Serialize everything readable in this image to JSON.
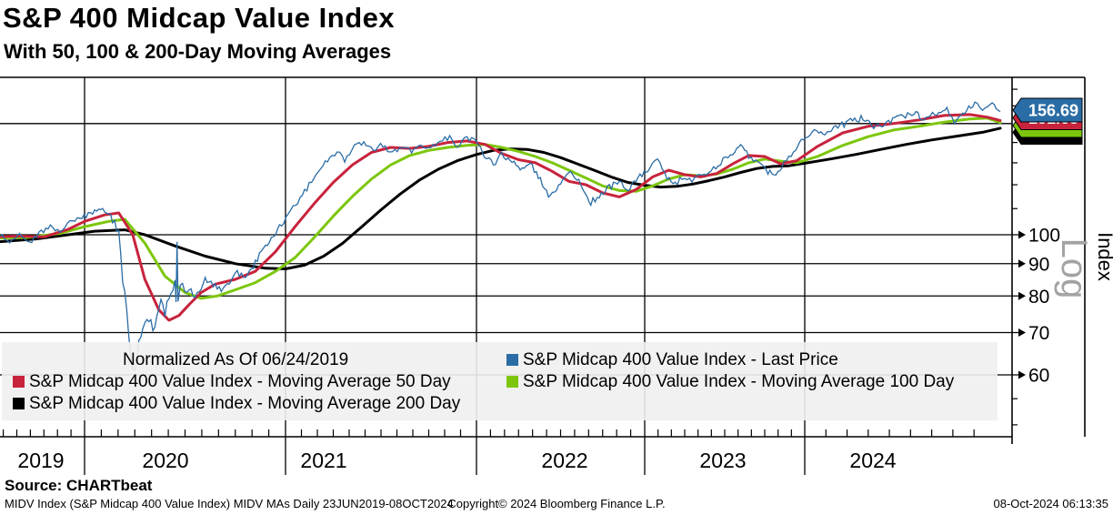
{
  "header": {
    "title": "S&P 400 Midcap Value Index",
    "subtitle": "With 50, 100 & 200-Day Moving Averages"
  },
  "colors": {
    "blue": "#2A6CA5",
    "red": "#C8233C",
    "green": "#7DC60D",
    "black": "#000000",
    "grid": "#000000",
    "legend_bg": "#EFEFEF",
    "log_gray": "#A3A3A3",
    "tag_text": "#FFFFFF"
  },
  "legend": {
    "normalized_note": "Normalized As Of 06/24/2019",
    "entries": [
      {
        "label": "S&P Midcap 400 Value Index - Last Price",
        "color": "blue"
      },
      {
        "label": "S&P Midcap 400 Value Index - Moving Average 50 Day",
        "color": "red"
      },
      {
        "label": "S&P Midcap 400 Value Index - Moving Average 100 Day",
        "color": "green"
      },
      {
        "label": "S&P Midcap 400 Value Index - Moving Average 200 Day",
        "color": "black"
      }
    ]
  },
  "axis": {
    "scale_label": "Log",
    "title": "Index",
    "y_tick_labels": [
      {
        "label": "100",
        "value": 100
      },
      {
        "label": "90",
        "value": 90
      },
      {
        "label": "80",
        "value": 80
      },
      {
        "label": "70",
        "value": 70
      },
      {
        "label": "60",
        "value": 60
      }
    ],
    "x_labels": [
      "2019",
      "2020",
      "2021",
      "2022",
      "2023",
      "2024"
    ]
  },
  "price_tags": [
    {
      "series": "last_price",
      "value": "156.69",
      "color": "blue"
    },
    {
      "series": "ma50",
      "value": "151.68",
      "color": "red"
    },
    {
      "series": "ma100",
      "value": "",
      "color": "green"
    },
    {
      "series": "ma200",
      "value": "",
      "color": "black"
    }
  ],
  "footer": {
    "source": "Source: CHARTbeat",
    "left": "MIDV Index (S&P Midcap 400 Value Index) MIDV MAs  Daily 23JUN2019-08OCT2024",
    "center": "Copyright© 2024 Bloomberg Finance L.P.",
    "right": "08-Oct-2024 06:13:35"
  },
  "chart_data": {
    "type": "line",
    "title": "S&P 400 Midcap Value Index",
    "subtitle": "With 50, 100 & 200-Day Moving Averages",
    "normalized": "Normalized As Of 06/24/2019 = 100",
    "x_range": {
      "start": "23JUN2019",
      "end": "08OCT2024",
      "frequency": "Daily",
      "x_unit": "decimal year"
    },
    "y_scale": "log",
    "ylim": [
      48,
      178
    ],
    "y_gridlines": [
      150,
      100,
      90,
      80,
      70,
      60
    ],
    "x_gridline_years": [
      2020,
      2021,
      2022,
      2023,
      2024
    ],
    "legend_position": "bottom inside",
    "series": [
      {
        "name": "S&P Midcap 400 Value Index - Last Price",
        "color": "blue",
        "style": "noisy_daily",
        "last_value": 156.69,
        "x": [
          2019.48,
          2019.54,
          2019.6,
          2019.66,
          2019.72,
          2019.79,
          2019.85,
          2019.91,
          2019.97,
          2020.04,
          2020.09,
          2020.13,
          2020.17,
          2020.2,
          2020.23,
          2020.25,
          2020.28,
          2020.31,
          2020.34,
          2020.37,
          2020.4,
          2020.43,
          2020.45,
          2020.455,
          2020.46,
          2020.465,
          2020.51,
          2020.55,
          2020.6,
          2020.64,
          2020.68,
          2020.72,
          2020.76,
          2020.8,
          2020.84,
          2020.88,
          2020.93,
          2020.98,
          2021.04,
          2021.1,
          2021.16,
          2021.22,
          2021.27,
          2021.31,
          2021.36,
          2021.41,
          2021.46,
          2021.51,
          2021.56,
          2021.61,
          2021.66,
          2021.71,
          2021.76,
          2021.81,
          2021.86,
          2021.9,
          2021.95,
          2022.0,
          2022.05,
          2022.1,
          2022.15,
          2022.2,
          2022.26,
          2022.32,
          2022.38,
          2022.44,
          2022.5,
          2022.56,
          2022.62,
          2022.68,
          2022.73,
          2022.79,
          2022.85,
          2022.9,
          2022.96,
          2023.02,
          2023.08,
          2023.14,
          2023.19,
          2023.25,
          2023.31,
          2023.37,
          2023.43,
          2023.49,
          2023.55,
          2023.6,
          2023.65,
          2023.71,
          2023.77,
          2023.82,
          2023.87,
          2023.93,
          2023.98,
          2024.03,
          2024.08,
          2024.13,
          2024.18,
          2024.23,
          2024.28,
          2024.33,
          2024.38,
          2024.43,
          2024.47,
          2024.52,
          2024.56,
          2024.59,
          2024.63,
          2024.67,
          2024.7,
          2024.73,
          2024.77
        ],
        "v": [
          100,
          97.5,
          101,
          97,
          100.5,
          103,
          101,
          104.5,
          106,
          108.5,
          110,
          107,
          99,
          80,
          64,
          61,
          70,
          75,
          70.5,
          78,
          75,
          82.5,
          84,
          80,
          99.5,
          80.5,
          83,
          79.5,
          85,
          83.5,
          81.5,
          84,
          87,
          85.5,
          89,
          94,
          99,
          104,
          110,
          117,
          124,
          131,
          135,
          131,
          137.5,
          140,
          136,
          139,
          134,
          138,
          136,
          139.5,
          137,
          141,
          143,
          138.5,
          142,
          140.5,
          133.5,
          129,
          134,
          131,
          127,
          130,
          122,
          114.5,
          120,
          126,
          120,
          112.5,
          115.5,
          119,
          121.5,
          117.5,
          123,
          127,
          131.5,
          122.5,
          120.5,
          124,
          122,
          124.5,
          127,
          131.5,
          135,
          137.5,
          133.5,
          130,
          126,
          124.5,
          130,
          136,
          142,
          146,
          144.5,
          148,
          151.5,
          153,
          148,
          151,
          154,
          156,
          152.5,
          155.5,
          158.5,
          151,
          157,
          160.5,
          158,
          162,
          156.69
        ]
      },
      {
        "name": "S&P Midcap 400 Value Index - Moving Average 50 Day",
        "color": "red",
        "style": "smooth",
        "last_value": 151.68,
        "x": [
          2019.48,
          2019.6,
          2019.75,
          2019.9,
          2020.0,
          2020.1,
          2020.17,
          2020.24,
          2020.3,
          2020.37,
          2020.42,
          2020.47,
          2020.52,
          2020.58,
          2020.65,
          2020.75,
          2020.85,
          2020.95,
          2021.05,
          2021.15,
          2021.25,
          2021.35,
          2021.45,
          2021.55,
          2021.65,
          2021.75,
          2021.85,
          2021.95,
          2022.05,
          2022.15,
          2022.25,
          2022.35,
          2022.45,
          2022.55,
          2022.65,
          2022.75,
          2022.85,
          2022.95,
          2023.05,
          2023.15,
          2023.25,
          2023.35,
          2023.45,
          2023.55,
          2023.65,
          2023.75,
          2023.85,
          2023.95,
          2024.05,
          2024.15,
          2024.25,
          2024.35,
          2024.45,
          2024.55,
          2024.65,
          2024.72,
          2024.77
        ],
        "v": [
          99.3,
          99.5,
          99.2,
          102,
          105,
          107.5,
          108.3,
          100,
          85,
          76,
          73.2,
          74.5,
          77.5,
          81,
          83.5,
          85,
          87.5,
          94,
          103,
          112,
          121,
          129,
          135,
          137.5,
          137,
          138,
          140,
          140.8,
          139,
          134.5,
          131.5,
          130,
          126,
          121.5,
          120,
          116.5,
          114.8,
          118,
          123.5,
          126.5,
          124.5,
          123.5,
          125,
          129.5,
          133.5,
          133,
          129.5,
          131,
          138,
          145,
          148.5,
          150,
          152,
          154.5,
          155,
          153.5,
          151.68
        ]
      },
      {
        "name": "S&P Midcap 400 Value Index - Moving Average 100 Day",
        "color": "green",
        "style": "smooth",
        "last_value": 150.5,
        "x": [
          2019.48,
          2019.65,
          2019.85,
          2020.0,
          2020.12,
          2020.2,
          2020.3,
          2020.4,
          2020.5,
          2020.58,
          2020.66,
          2020.75,
          2020.85,
          2020.95,
          2021.05,
          2021.15,
          2021.25,
          2021.35,
          2021.45,
          2021.55,
          2021.65,
          2021.75,
          2021.85,
          2021.95,
          2022.05,
          2022.15,
          2022.25,
          2022.35,
          2022.45,
          2022.55,
          2022.65,
          2022.75,
          2022.85,
          2022.95,
          2023.05,
          2023.15,
          2023.25,
          2023.35,
          2023.45,
          2023.55,
          2023.65,
          2023.75,
          2023.85,
          2023.95,
          2024.05,
          2024.15,
          2024.25,
          2024.35,
          2024.45,
          2024.55,
          2024.65,
          2024.72,
          2024.77
        ],
        "v": [
          98.8,
          99,
          100.5,
          103,
          105,
          105.8,
          97,
          86,
          81,
          79.3,
          80,
          81.8,
          84,
          87.5,
          92,
          99,
          107,
          115,
          122.5,
          129,
          133.5,
          136,
          137.5,
          138.5,
          139,
          137.5,
          135.5,
          133,
          130,
          126.5,
          123,
          119.5,
          117.5,
          117.2,
          119.5,
          122.5,
          124.5,
          124,
          124.8,
          127,
          130,
          131.8,
          130.8,
          130,
          133,
          138.5,
          143,
          146.5,
          148.5,
          150.8,
          152.5,
          153,
          150.5
        ]
      },
      {
        "name": "S&P Midcap 400 Value Index - Moving Average 200 Day",
        "color": "black",
        "style": "smooth",
        "last_value": 147.5,
        "x": [
          2019.48,
          2019.7,
          2019.9,
          2020.05,
          2020.2,
          2020.3,
          2020.45,
          2020.6,
          2020.75,
          2020.9,
          2021.0,
          2021.1,
          2021.2,
          2021.3,
          2021.4,
          2021.5,
          2021.6,
          2021.7,
          2021.8,
          2021.9,
          2022.0,
          2022.1,
          2022.2,
          2022.3,
          2022.4,
          2022.5,
          2022.6,
          2022.7,
          2022.8,
          2022.9,
          2023.0,
          2023.1,
          2023.2,
          2023.3,
          2023.4,
          2023.5,
          2023.6,
          2023.7,
          2023.8,
          2023.9,
          2024.0,
          2024.1,
          2024.2,
          2024.3,
          2024.4,
          2024.5,
          2024.6,
          2024.7,
          2024.77
        ],
        "v": [
          97.5,
          98.5,
          100,
          101.3,
          101.8,
          100,
          96,
          92.5,
          90,
          88.5,
          88.3,
          89.5,
          92.5,
          97,
          103,
          109.5,
          116,
          122,
          127,
          131,
          134,
          136,
          136.8,
          136.5,
          135,
          132.5,
          129.5,
          126.5,
          123.5,
          121,
          119.8,
          119,
          119.3,
          120.3,
          121.8,
          123.5,
          125.5,
          127.3,
          128.3,
          128.6,
          129.8,
          131.8,
          134,
          136.5,
          139,
          141.3,
          143.3,
          145.3,
          147.5
        ]
      }
    ]
  }
}
